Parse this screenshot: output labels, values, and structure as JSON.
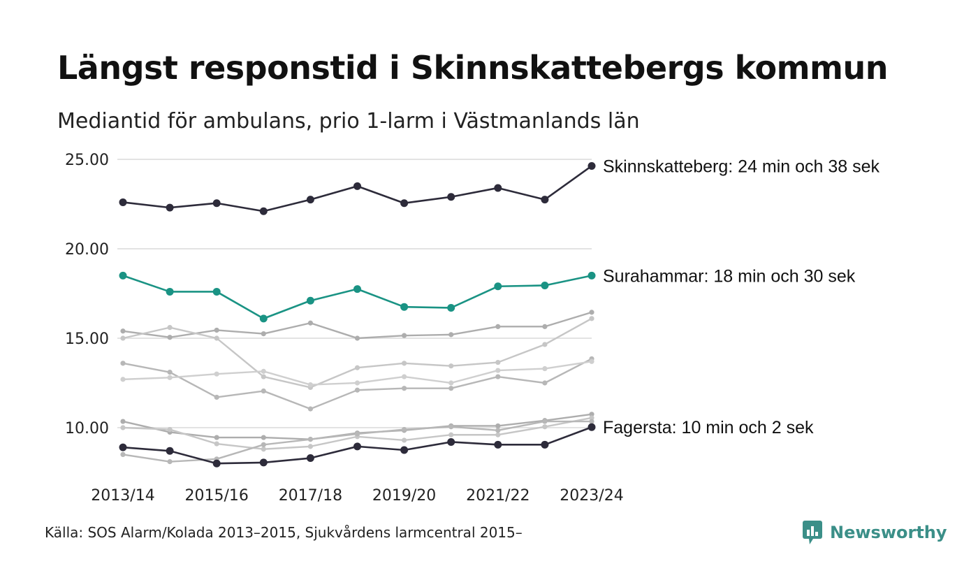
{
  "header": {
    "title": "Längst responstid i Skinnskattebergs kommun",
    "subtitle": "Mediantid för ambulans, prio 1-larm i Västmanlands län"
  },
  "footer": {
    "source": "Källa: SOS Alarm/Kolada 2013–2015, Sjukvårdens larmcentral 2015–",
    "brand": "Newsworthy"
  },
  "colors": {
    "highlight_dark": "#2d2b3a",
    "highlight_teal": "#1a9384",
    "background_lines": [
      "#adadad",
      "#c6c6c6",
      "#b7b7b7",
      "#cfcfcf"
    ],
    "gridline": "#e3e3e3",
    "brand": "#3b8f88"
  },
  "chart_data": {
    "type": "line",
    "x": [
      "2013/14",
      "2014/15",
      "2015/16",
      "2016/17",
      "2017/18",
      "2018/19",
      "2019/20",
      "2020/21",
      "2021/22",
      "2022/23",
      "2023/24"
    ],
    "x_tick_labels": [
      "2013/14",
      "2015/16",
      "2017/18",
      "2019/20",
      "2021/22",
      "2023/24"
    ],
    "y_ticks": [
      "10.00",
      "15.00",
      "20.00",
      "25.00"
    ],
    "ylim": [
      7.5,
      25.5
    ],
    "grid": "horizontal",
    "series": [
      {
        "name": "Skinnskatteberg",
        "label": "Skinnskatteberg: 24 min och 38 sek",
        "highlight": "dark",
        "values": [
          22.6,
          22.3,
          22.55,
          22.1,
          22.75,
          23.5,
          22.55,
          22.9,
          23.4,
          22.75,
          24.63
        ]
      },
      {
        "name": "Surahammar",
        "label": "Surahammar: 18 min och 30 sek",
        "highlight": "teal",
        "values": [
          18.5,
          17.6,
          17.6,
          16.1,
          17.1,
          17.75,
          16.75,
          16.7,
          17.9,
          17.95,
          18.5
        ]
      },
      {
        "name": "Fagersta",
        "label": "Fagersta: 10 min och 2 sek",
        "highlight": "dark",
        "values": [
          8.9,
          8.7,
          8.0,
          8.05,
          8.3,
          8.95,
          8.75,
          9.2,
          9.05,
          9.05,
          10.03
        ]
      },
      {
        "values": [
          15.4,
          15.05,
          15.45,
          15.25,
          15.85,
          15.0,
          15.15,
          15.2,
          15.65,
          15.65,
          16.45
        ]
      },
      {
        "values": [
          15.0,
          15.6,
          15.0,
          12.85,
          12.25,
          13.35,
          13.6,
          13.45,
          13.65,
          14.65,
          16.1
        ]
      },
      {
        "values": [
          13.6,
          13.1,
          11.7,
          12.05,
          11.05,
          12.1,
          12.2,
          12.2,
          12.85,
          12.5,
          13.85
        ]
      },
      {
        "values": [
          12.7,
          12.8,
          13.0,
          13.15,
          12.4,
          12.5,
          12.85,
          12.5,
          13.2,
          13.3,
          13.7
        ]
      },
      {
        "values": [
          10.35,
          9.75,
          9.45,
          9.45,
          9.35,
          9.7,
          9.85,
          10.1,
          10.1,
          10.4,
          10.75
        ]
      },
      {
        "values": [
          10.0,
          9.9,
          9.1,
          8.8,
          8.95,
          9.5,
          9.3,
          9.6,
          9.6,
          10.05,
          10.55
        ]
      },
      {
        "values": [
          8.5,
          8.1,
          8.25,
          9.05,
          9.35,
          9.65,
          9.9,
          10.05,
          9.85,
          10.35,
          10.35
        ]
      }
    ]
  }
}
